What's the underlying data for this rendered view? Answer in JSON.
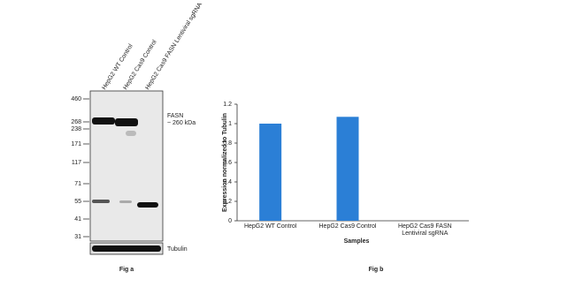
{
  "blot": {
    "lanes": [
      "HepG2 WT Control",
      "HepG2 Cas9 Control",
      "HepG2 Cas9 FASN Lentiviral sgRNA"
    ],
    "markers": [
      460,
      268,
      238,
      171,
      117,
      71,
      55,
      41,
      31
    ],
    "target": "FASN",
    "target_size": "~ 260 kDa",
    "loading_control": "Tubulin",
    "caption": "Fig a"
  },
  "chart_data": {
    "type": "bar",
    "caption": "Fig b",
    "categories": [
      "HepG2 WT Control",
      "HepG2 Cas9 Control",
      "HepG2 Cas9 FASN Lentiviral sgRNA"
    ],
    "values": [
      1,
      1.07,
      0
    ],
    "color": "#2b7fd6",
    "ylim": [
      0,
      1.2
    ],
    "yticks": [
      0,
      0.2,
      0.4,
      0.6,
      0.8,
      1,
      1.2
    ],
    "y_label": "Expression normalized to Tubulin",
    "x_label": "Samples"
  }
}
